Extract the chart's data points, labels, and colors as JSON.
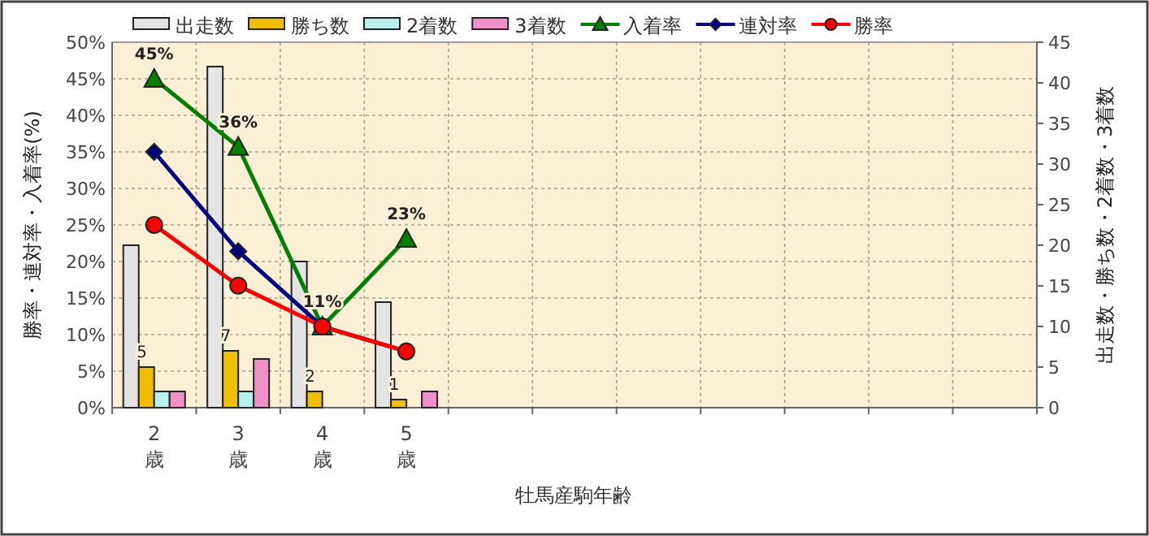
{
  "chart_data": {
    "type": "bar",
    "xlabel": "牡馬産駒年齢",
    "ylabel": "勝率・連対率・入着率(%)",
    "y2label": "出走数・勝ち数・2着数・3着数",
    "categories": [
      "2\n歳",
      "3\n歳",
      "4\n歳",
      "5\n歳",
      null,
      null,
      null,
      null,
      null,
      null,
      null
    ],
    "series": [
      {
        "name": "出走数",
        "type": "bar",
        "axis": "y2",
        "color": "#e4e4e4",
        "values": [
          20,
          42,
          18,
          13,
          null,
          null,
          null,
          null,
          null,
          null,
          null
        ]
      },
      {
        "name": "勝ち数",
        "type": "bar",
        "axis": "y2",
        "color": "#f0c000",
        "values": [
          5,
          7,
          2,
          1,
          null,
          null,
          null,
          null,
          null,
          null,
          null
        ],
        "value_labels": [
          "5",
          "7",
          "2",
          "1",
          null,
          null,
          null,
          null,
          null,
          null,
          null
        ]
      },
      {
        "name": "2着数",
        "type": "bar",
        "axis": "y2",
        "color": "#b8f0f0",
        "values": [
          2,
          2,
          0,
          0,
          null,
          null,
          null,
          null,
          null,
          null,
          null
        ]
      },
      {
        "name": "3着数",
        "type": "bar",
        "axis": "y2",
        "color": "#f090c8",
        "values": [
          2,
          6,
          0,
          2,
          null,
          null,
          null,
          null,
          null,
          null,
          null
        ]
      },
      {
        "name": "入着率",
        "type": "line",
        "axis": "y",
        "color": "#008000",
        "marker": "triangle",
        "values": [
          45,
          35.7,
          11.1,
          23.1,
          null,
          null,
          null,
          null,
          null,
          null,
          null
        ],
        "value_labels": [
          "45%",
          "36%",
          "11%",
          "23%",
          null,
          null,
          null,
          null,
          null,
          null,
          null
        ]
      },
      {
        "name": "連対率",
        "type": "line",
        "axis": "y",
        "color": "#000080",
        "marker": "diamond",
        "values": [
          35,
          21.4,
          11.1,
          7.7,
          null,
          null,
          null,
          null,
          null,
          null,
          null
        ]
      },
      {
        "name": "勝率",
        "type": "line",
        "axis": "y",
        "color": "#ff0000",
        "marker": "circle",
        "values": [
          25,
          16.7,
          11.1,
          7.7,
          null,
          null,
          null,
          null,
          null,
          null,
          null
        ]
      }
    ],
    "ylim": [
      0,
      50
    ],
    "yticks": [
      {
        "value": 0,
        "label": "0%"
      },
      {
        "value": 5,
        "label": "5%"
      },
      {
        "value": 10,
        "label": "10%"
      },
      {
        "value": 15,
        "label": "15%"
      },
      {
        "value": 20,
        "label": "20%"
      },
      {
        "value": 25,
        "label": "25%"
      },
      {
        "value": 30,
        "label": "30%"
      },
      {
        "value": 35,
        "label": "35%"
      },
      {
        "value": 40,
        "label": "40%"
      },
      {
        "value": 45,
        "label": "45%"
      },
      {
        "value": 50,
        "label": "50%"
      }
    ],
    "y2lim": [
      0,
      45
    ],
    "y2ticks": [
      0,
      5,
      10,
      15,
      20,
      25,
      30,
      35,
      40,
      45
    ],
    "grid": true,
    "legend": "top",
    "line_style": "solid"
  }
}
